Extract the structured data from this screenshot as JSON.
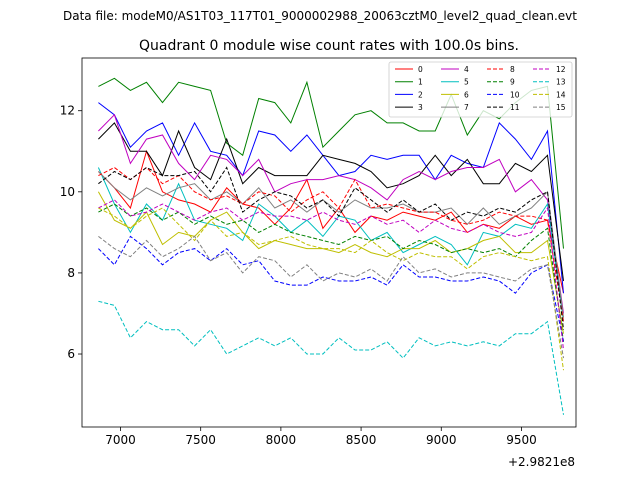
{
  "suptitle": "Data file: modeM0/AS1T03_117T01_9000002988_20063cztM0_level2_quad_clean.evt",
  "chart_data": {
    "type": "line",
    "title": "Quadrant 0 module wise count rates with 100.0s bins.",
    "xlabel": "",
    "ylabel": "",
    "x_offset_label": "+2.9821e8",
    "xlim": [
      6760,
      9840
    ],
    "ylim": [
      4.2,
      13.3
    ],
    "xticks": [
      7000,
      7500,
      8000,
      8500,
      9000,
      9500
    ],
    "yticks": [
      6,
      8,
      10,
      12
    ],
    "x": [
      6862,
      6962,
      7062,
      7162,
      7262,
      7362,
      7462,
      7562,
      7662,
      7762,
      7862,
      7962,
      8062,
      8162,
      8262,
      8362,
      8462,
      8562,
      8662,
      8762,
      8862,
      8962,
      9062,
      9162,
      9262,
      9362,
      9462,
      9562,
      9662,
      9762
    ],
    "legend_location": "top-right",
    "series": [
      {
        "name": "0",
        "color": "#ff0000",
        "dash": "solid",
        "values": [
          10.5,
          10.1,
          9.6,
          11.0,
          10.0,
          9.8,
          9.7,
          9.5,
          10.1,
          9.7,
          9.6,
          9.2,
          9.6,
          10.3,
          9.1,
          9.6,
          9.0,
          9.4,
          9.3,
          9.5,
          9.4,
          9.3,
          9.5,
          9.0,
          9.2,
          9.1,
          9.4,
          9.2,
          9.3,
          7.5
        ]
      },
      {
        "name": "1",
        "color": "#008000",
        "dash": "solid",
        "values": [
          12.6,
          12.8,
          12.5,
          12.7,
          12.2,
          12.7,
          12.6,
          12.5,
          11.2,
          10.9,
          12.3,
          12.2,
          11.7,
          12.7,
          11.1,
          11.5,
          11.9,
          12.0,
          11.7,
          11.7,
          11.5,
          11.5,
          12.4,
          11.4,
          12.0,
          11.8,
          12.2,
          12.5,
          12.6,
          8.6
        ]
      },
      {
        "name": "2",
        "color": "#0000ff",
        "dash": "solid",
        "values": [
          12.2,
          11.9,
          11.1,
          11.5,
          11.7,
          10.9,
          11.7,
          11.0,
          10.9,
          10.4,
          11.5,
          11.4,
          11.0,
          11.4,
          10.9,
          10.4,
          10.5,
          10.9,
          10.8,
          10.9,
          10.9,
          10.3,
          10.9,
          10.7,
          10.6,
          11.7,
          11.3,
          10.8,
          11.5,
          7.5
        ]
      },
      {
        "name": "3",
        "color": "#000000",
        "dash": "solid",
        "values": [
          11.3,
          11.7,
          11.0,
          11.0,
          10.4,
          11.5,
          10.6,
          10.3,
          11.3,
          10.2,
          10.6,
          10.4,
          10.4,
          10.4,
          10.9,
          10.8,
          10.7,
          10.5,
          10.1,
          10.2,
          10.4,
          10.9,
          10.4,
          10.8,
          10.2,
          10.2,
          10.7,
          10.5,
          10.9,
          7.8
        ]
      },
      {
        "name": "4",
        "color": "#c000c0",
        "dash": "solid",
        "values": [
          11.5,
          11.9,
          10.7,
          11.3,
          11.4,
          10.7,
          10.3,
          10.9,
          10.8,
          10.4,
          10.8,
          10.0,
          10.2,
          10.3,
          10.3,
          10.4,
          10.3,
          10.1,
          9.8,
          10.3,
          10.5,
          10.3,
          10.5,
          10.6,
          10.6,
          10.8,
          10.0,
          10.3,
          9.8,
          7.0
        ]
      },
      {
        "name": "5",
        "color": "#00bfbf",
        "dash": "solid",
        "values": [
          10.6,
          9.7,
          9.0,
          9.7,
          9.3,
          10.2,
          9.3,
          9.2,
          9.1,
          8.8,
          9.7,
          9.4,
          9.0,
          9.3,
          8.9,
          9.4,
          9.3,
          8.8,
          9.0,
          8.5,
          8.7,
          8.9,
          8.7,
          8.2,
          9.0,
          8.9,
          9.2,
          9.1,
          9.7,
          6.8
        ]
      },
      {
        "name": "6",
        "color": "#bfbf00",
        "dash": "solid",
        "values": [
          10.0,
          9.3,
          9.1,
          9.5,
          8.7,
          9.0,
          8.9,
          9.3,
          9.5,
          9.0,
          8.6,
          8.8,
          8.7,
          8.6,
          8.6,
          8.5,
          8.7,
          8.5,
          8.4,
          8.6,
          8.6,
          8.8,
          8.5,
          8.6,
          8.8,
          8.9,
          8.5,
          8.5,
          8.8,
          6.5
        ]
      },
      {
        "name": "7",
        "color": "#808080",
        "dash": "solid",
        "values": [
          10.5,
          10.1,
          9.8,
          10.1,
          9.9,
          10.1,
          10.2,
          9.8,
          10.0,
          9.7,
          10.1,
          9.6,
          9.8,
          9.5,
          9.8,
          9.5,
          9.8,
          9.6,
          9.6,
          9.7,
          9.5,
          9.5,
          9.6,
          9.2,
          9.6,
          9.2,
          9.4,
          9.6,
          10.0,
          6.9
        ]
      },
      {
        "name": "8",
        "color": "#ff0000",
        "dash": "dashed",
        "values": [
          10.4,
          10.6,
          10.3,
          10.6,
          10.2,
          10.4,
          10.0,
          9.8,
          9.9,
          9.7,
          10.0,
          9.9,
          9.5,
          9.8,
          10.0,
          9.6,
          10.3,
          9.6,
          9.7,
          9.6,
          9.5,
          9.5,
          9.3,
          9.2,
          9.3,
          9.5,
          9.4,
          9.4,
          9.3,
          6.8
        ]
      },
      {
        "name": "9",
        "color": "#008000",
        "dash": "dashed",
        "values": [
          9.5,
          9.7,
          9.4,
          9.6,
          9.3,
          9.5,
          9.2,
          9.4,
          9.2,
          9.3,
          9.0,
          9.2,
          9.0,
          8.9,
          8.8,
          8.7,
          8.9,
          8.8,
          8.9,
          8.6,
          8.8,
          8.7,
          8.5,
          8.6,
          8.5,
          8.6,
          8.4,
          8.8,
          9.1,
          6.3
        ]
      },
      {
        "name": "10",
        "color": "#0000ff",
        "dash": "dashed",
        "values": [
          8.6,
          8.2,
          8.9,
          8.6,
          8.2,
          8.5,
          8.6,
          8.3,
          8.6,
          8.2,
          8.3,
          7.8,
          7.7,
          7.7,
          7.9,
          7.8,
          7.8,
          7.9,
          7.7,
          8.2,
          7.9,
          7.9,
          7.8,
          7.8,
          7.9,
          7.8,
          7.5,
          8.0,
          8.2,
          6.3
        ]
      },
      {
        "name": "11",
        "color": "#000000",
        "dash": "dashed",
        "values": [
          10.2,
          10.5,
          10.3,
          10.6,
          10.4,
          10.4,
          10.5,
          10.0,
          10.6,
          9.5,
          9.8,
          10.0,
          9.9,
          9.6,
          9.8,
          9.4,
          10.1,
          9.8,
          9.5,
          9.8,
          9.5,
          9.7,
          9.3,
          9.5,
          9.4,
          9.6,
          9.5,
          9.8,
          10.0,
          6.6
        ]
      },
      {
        "name": "12",
        "color": "#c000c0",
        "dash": "dashed",
        "values": [
          9.6,
          9.8,
          9.4,
          9.5,
          9.7,
          9.5,
          9.3,
          9.5,
          9.6,
          9.3,
          9.5,
          9.4,
          9.4,
          9.3,
          9.5,
          9.3,
          9.2,
          9.4,
          9.2,
          9.3,
          9.0,
          9.3,
          9.1,
          9.0,
          9.2,
          9.0,
          8.9,
          9.0,
          9.6,
          6.1
        ]
      },
      {
        "name": "13",
        "color": "#00bfbf",
        "dash": "dashed",
        "values": [
          7.3,
          7.2,
          6.4,
          6.8,
          6.6,
          6.6,
          6.2,
          6.6,
          6.0,
          6.2,
          6.4,
          6.2,
          6.4,
          6.0,
          6.0,
          6.4,
          6.1,
          6.1,
          6.3,
          5.9,
          6.4,
          6.2,
          6.3,
          6.2,
          6.3,
          6.2,
          6.5,
          6.5,
          6.8,
          4.5
        ]
      },
      {
        "name": "14",
        "color": "#bfbf00",
        "dash": "dashed",
        "values": [
          9.6,
          9.4,
          9.1,
          9.4,
          9.6,
          9.2,
          8.8,
          9.3,
          8.9,
          9.0,
          8.7,
          8.8,
          8.9,
          8.7,
          8.6,
          8.6,
          8.5,
          8.8,
          8.5,
          8.3,
          8.5,
          8.4,
          8.4,
          8.1,
          8.4,
          8.5,
          8.4,
          8.3,
          8.4,
          5.6
        ]
      },
      {
        "name": "15",
        "color": "#808080",
        "dash": "dashed",
        "values": [
          8.9,
          8.6,
          8.4,
          8.8,
          8.4,
          8.6,
          8.9,
          8.3,
          8.5,
          8.0,
          8.4,
          8.3,
          7.9,
          8.2,
          7.8,
          8.0,
          7.9,
          8.1,
          7.8,
          8.4,
          8.0,
          8.1,
          7.9,
          8.0,
          8.0,
          7.9,
          7.8,
          8.1,
          8.2,
          5.9
        ]
      }
    ]
  }
}
